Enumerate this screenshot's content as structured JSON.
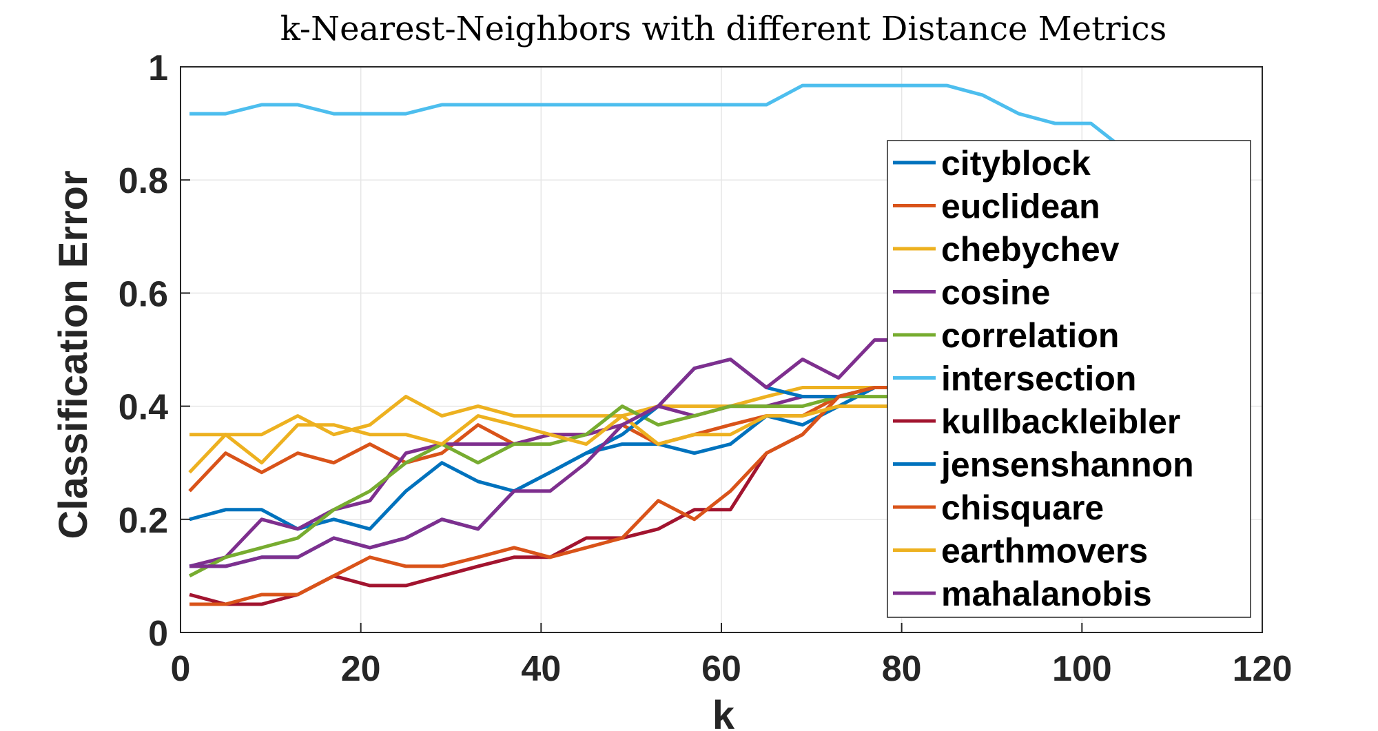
{
  "chart_data": {
    "type": "line",
    "title": "k-Nearest-Neighbors with different Distance Metrics",
    "xlabel": "k",
    "ylabel": "Classification Error",
    "xlim": [
      0,
      120
    ],
    "ylim": [
      0,
      1
    ],
    "xticks": [
      0,
      20,
      40,
      60,
      80,
      100,
      120
    ],
    "yticks": [
      0,
      0.2,
      0.4,
      0.6,
      0.8,
      1
    ],
    "ytick_labels": [
      "0",
      "0.2",
      "0.4",
      "0.6",
      "0.8",
      "1"
    ],
    "grid": true,
    "legend_position": "right",
    "x": [
      1,
      5,
      9,
      13,
      17,
      21,
      25,
      29,
      33,
      37,
      41,
      45,
      49,
      53,
      57,
      61,
      65,
      69,
      73,
      77,
      81,
      85,
      89,
      93,
      97,
      101,
      105
    ],
    "series": [
      {
        "name": "cityblock",
        "color": "#0072BD",
        "values": [
          0.2,
          0.217,
          0.217,
          0.183,
          0.2,
          0.183,
          0.25,
          0.3,
          0.267,
          0.25,
          0.283,
          0.317,
          0.333,
          0.333,
          0.317,
          0.333,
          0.383,
          0.367,
          0.4,
          0.433,
          0.433,
          null,
          null,
          null,
          null,
          null,
          null
        ]
      },
      {
        "name": "euclidean",
        "color": "#D95319",
        "values": [
          0.25,
          0.317,
          0.283,
          0.317,
          0.3,
          0.333,
          0.3,
          0.317,
          0.367,
          0.333,
          0.35,
          0.35,
          0.367,
          0.333,
          0.35,
          0.367,
          0.383,
          0.383,
          0.417,
          0.433,
          0.433,
          null,
          null,
          null,
          null,
          null,
          null
        ]
      },
      {
        "name": "chebychev",
        "color": "#EDB120",
        "values": [
          0.35,
          0.35,
          0.35,
          0.383,
          0.35,
          0.367,
          0.417,
          0.383,
          0.4,
          0.383,
          0.383,
          0.383,
          0.383,
          0.4,
          0.4,
          0.4,
          0.417,
          0.433,
          0.433,
          0.433,
          0.433,
          null,
          null,
          null,
          null,
          null,
          null
        ]
      },
      {
        "name": "cosine",
        "color": "#7E2F8E",
        "values": [
          0.117,
          0.133,
          0.2,
          0.183,
          0.217,
          0.233,
          0.317,
          0.333,
          0.333,
          0.333,
          0.35,
          0.35,
          0.367,
          0.4,
          0.383,
          0.4,
          0.4,
          0.417,
          0.417,
          0.433,
          0.433,
          null,
          null,
          null,
          null,
          null,
          null
        ]
      },
      {
        "name": "correlation",
        "color": "#77AC30",
        "values": [
          0.1,
          0.133,
          0.15,
          0.167,
          0.217,
          0.25,
          0.3,
          0.333,
          0.3,
          0.333,
          0.333,
          0.35,
          0.4,
          0.367,
          0.383,
          0.4,
          0.4,
          0.4,
          0.417,
          0.417,
          0.417,
          null,
          null,
          null,
          null,
          null,
          null
        ]
      },
      {
        "name": "intersection",
        "color": "#4DBEEE",
        "values": [
          0.917,
          0.917,
          0.933,
          0.933,
          0.917,
          0.917,
          0.917,
          0.933,
          0.933,
          0.933,
          0.933,
          0.933,
          0.933,
          0.933,
          0.933,
          0.933,
          0.933,
          0.967,
          0.967,
          0.967,
          0.967,
          0.967,
          0.95,
          0.917,
          0.9,
          0.9,
          0.85
        ]
      },
      {
        "name": "kullbackleibler",
        "color": "#A2142F",
        "values": [
          0.067,
          0.05,
          0.05,
          0.067,
          0.1,
          0.083,
          0.083,
          0.1,
          0.117,
          0.133,
          0.133,
          0.167,
          0.167,
          0.183,
          0.217,
          0.217,
          0.317,
          0.35,
          0.417,
          0.433,
          0.433,
          null,
          null,
          null,
          null,
          null,
          null
        ]
      },
      {
        "name": "jensenshannon",
        "color": "#0072BD",
        "values": [
          0.117,
          0.117,
          0.133,
          0.133,
          0.167,
          0.15,
          0.167,
          0.2,
          0.183,
          0.25,
          0.283,
          0.317,
          0.35,
          0.4,
          0.467,
          0.483,
          0.433,
          0.417,
          0.417,
          0.433,
          0.433,
          null,
          null,
          null,
          null,
          null,
          null
        ]
      },
      {
        "name": "chisquare",
        "color": "#D95319",
        "values": [
          0.05,
          0.05,
          0.067,
          0.067,
          0.1,
          0.133,
          0.117,
          0.117,
          0.133,
          0.15,
          0.133,
          0.15,
          0.167,
          0.233,
          0.2,
          0.25,
          0.317,
          0.35,
          0.417,
          0.433,
          0.433,
          null,
          null,
          null,
          null,
          null,
          null
        ]
      },
      {
        "name": "earthmovers",
        "color": "#EDB120",
        "values": [
          0.283,
          0.35,
          0.3,
          0.367,
          0.367,
          0.35,
          0.35,
          0.333,
          0.383,
          0.367,
          0.35,
          0.333,
          0.383,
          0.333,
          0.35,
          0.35,
          0.383,
          0.383,
          0.4,
          0.4,
          0.4,
          null,
          null,
          null,
          null,
          null,
          null
        ]
      },
      {
        "name": "mahalanobis",
        "color": "#7E2F8E",
        "values": [
          0.117,
          0.117,
          0.133,
          0.133,
          0.167,
          0.15,
          0.167,
          0.2,
          0.183,
          0.25,
          0.25,
          0.3,
          0.367,
          0.4,
          0.467,
          0.483,
          0.433,
          0.483,
          0.45,
          0.517,
          0.517,
          null,
          null,
          null,
          null,
          null,
          null
        ]
      }
    ]
  }
}
